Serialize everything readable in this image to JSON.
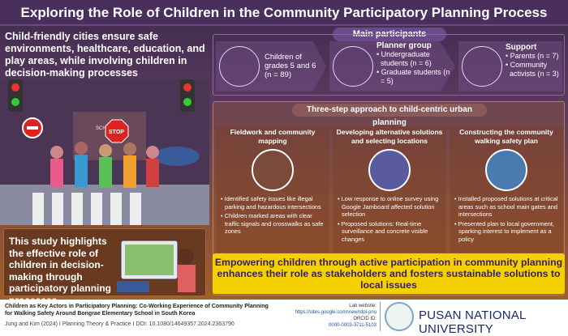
{
  "title": "Exploring the Role of Children in the Community Participatory Planning Process",
  "left": {
    "intro": "Child-friendly cities ensure safe environments, healthcare, education, and play areas, while involving children in decision-making processes",
    "scene_signs": [
      "STOP",
      "SCHOOL"
    ],
    "highlight": "This study highlights the effective role of children in decision-making through participatory planning processes"
  },
  "participants": {
    "heading": "Main participants",
    "groups": [
      {
        "lines": [
          "Children of",
          "grades 5 and 6",
          "(n = 89)"
        ]
      },
      {
        "title": "Planner group",
        "items": [
          "Undergraduate students (n = 6)",
          "Graduate students (n = 5)"
        ]
      },
      {
        "title": "Support",
        "items": [
          "Parents (n = 7)",
          "Community activists (n = 3)"
        ]
      }
    ]
  },
  "steps": {
    "heading": "Three-step approach to child-centric urban planning",
    "items": [
      {
        "title": "Fieldwork and community mapping",
        "bullets": [
          "Identified safety issues like illegal parking and hazardous intersections",
          "Children marked areas with clear traffic signals and crosswalks as safe zones"
        ]
      },
      {
        "title": "Developing alternative solutions and selecting locations",
        "bullets": [
          "Low response to online survey using Google Jamboard affected solution selection",
          "Proposed solutions: Real-time surveillance and concrete visible changes"
        ]
      },
      {
        "title": "Constructing the community walking safety plan",
        "bullets": [
          "Installed proposed solutions at critical areas such as school main gates and intersections",
          "Presented plan to local government, sparking interest to implement as a policy"
        ]
      }
    ]
  },
  "conclusion": "Empowering children through active participation in community planning enhances their role as stakeholders and fosters sustainable solutions to local issues",
  "footer": {
    "paper_title": "Children as Key Actors in Participatory Planning: Co-Working Experience of Community Planning for Walking Safety Around Bongrae Elementary School in South Korea",
    "citation": "Jung and Kim (2024)  I  Planning Theory & Practice  I  DOI: 10.1080/14649357.2024.2363790",
    "lab_label": "Lab website:",
    "lab_url": "https://sites.google.com/view/rdpl-pnu",
    "orcid_label": "ORCID ID:",
    "orcid": "0000-0003-3711-5103",
    "university": "PUSAN NATIONAL UNIVERSITY"
  }
}
